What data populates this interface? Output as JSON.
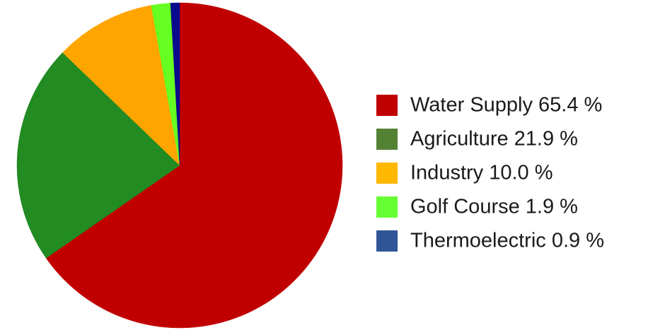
{
  "chart_data": {
    "type": "pie",
    "title": "",
    "slices": [
      {
        "label": "Water Supply",
        "value": 65.4,
        "display": "Water Supply 65.4 %",
        "color": "#c00000",
        "legend_color": "#c00000"
      },
      {
        "label": "Agriculture",
        "value": 21.9,
        "display": "Agriculture 21.9 %",
        "color": "#228b22",
        "legend_color": "#548235"
      },
      {
        "label": "Industry",
        "value": 10.0,
        "display": "Industry 10.0 %",
        "color": "#ffa500",
        "legend_color": "#ffb800"
      },
      {
        "label": "Golf Course",
        "value": 1.9,
        "display": "Golf Course 1.9 %",
        "color": "#66ff22",
        "legend_color": "#66ff33"
      },
      {
        "label": "Thermoelectric",
        "value": 0.9,
        "display": "Thermoelectric 0.9 %",
        "color": "#0a0a8c",
        "legend_color": "#2f5597"
      }
    ],
    "start_angle_deg": 0,
    "direction": "clockwise",
    "legend_position": "right"
  }
}
